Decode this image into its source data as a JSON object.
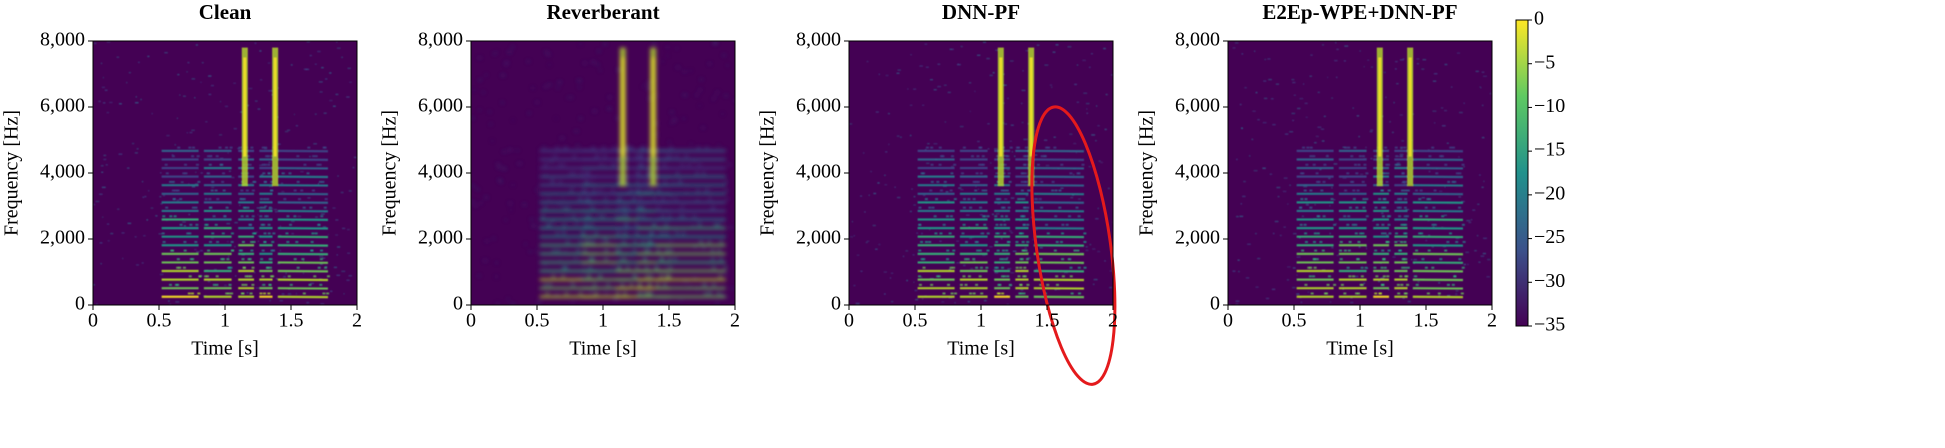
{
  "chart_data": [
    {
      "type": "heatmap",
      "title": "Clean",
      "xlabel": "Time [s]",
      "ylabel": "Frequency [Hz]",
      "xlim": [
        0,
        2
      ],
      "xticks": [
        0,
        0.5,
        1,
        1.5,
        2
      ],
      "ylim": [
        0,
        8000
      ],
      "yticks": [
        0,
        {
          "value": 2000,
          "label": "2,000"
        },
        {
          "value": 4000,
          "label": "4,000"
        },
        {
          "value": 6000,
          "label": "6,000"
        },
        {
          "value": 8000,
          "label": "8,000"
        }
      ]
    },
    {
      "type": "heatmap",
      "title": "Reverberant",
      "xlabel": "Time [s]",
      "ylabel": "Frequency [Hz]",
      "xlim": [
        0,
        2
      ],
      "xticks": [
        0,
        0.5,
        1,
        1.5,
        2
      ],
      "ylim": [
        0,
        8000
      ],
      "yticks": [
        0,
        {
          "value": 2000,
          "label": "2,000"
        },
        {
          "value": 4000,
          "label": "4,000"
        },
        {
          "value": 6000,
          "label": "6,000"
        },
        {
          "value": 8000,
          "label": "8,000"
        }
      ]
    },
    {
      "type": "heatmap",
      "title": "DNN-PF",
      "xlabel": "Time [s]",
      "ylabel": "Frequency [Hz]",
      "xlim": [
        0,
        2
      ],
      "xticks": [
        0,
        0.5,
        1,
        1.5,
        2
      ],
      "ylim": [
        0,
        8000
      ],
      "yticks": [
        0,
        {
          "value": 2000,
          "label": "2,000"
        },
        {
          "value": 4000,
          "label": "4,000"
        },
        {
          "value": 6000,
          "label": "6,000"
        },
        {
          "value": 8000,
          "label": "8,000"
        }
      ]
    },
    {
      "type": "heatmap",
      "title": "E2Ep-WPE+DNN-PF",
      "xlabel": "Time [s]",
      "ylabel": "Frequency [Hz]",
      "xlim": [
        0,
        2
      ],
      "xticks": [
        0,
        0.5,
        1,
        1.5,
        2
      ],
      "ylim": [
        0,
        8000
      ],
      "yticks": [
        0,
        {
          "value": 2000,
          "label": "2,000"
        },
        {
          "value": 4000,
          "label": "4,000"
        },
        {
          "value": 6000,
          "label": "6,000"
        },
        {
          "value": 8000,
          "label": "8,000"
        }
      ]
    }
  ],
  "colorbar": {
    "ylim": [
      -35,
      0
    ],
    "yticks": [
      0,
      {
        "value": -5,
        "label": "−5"
      },
      {
        "value": -10,
        "label": "−10"
      },
      {
        "value": -15,
        "label": "−15"
      },
      {
        "value": -20,
        "label": "−20"
      },
      {
        "value": -25,
        "label": "−25"
      },
      {
        "value": -30,
        "label": "−30"
      },
      {
        "value": -35,
        "label": "−35"
      }
    ]
  }
}
